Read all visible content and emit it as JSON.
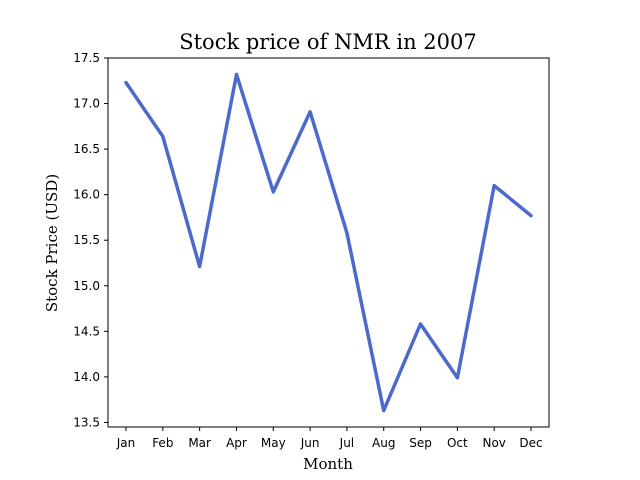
{
  "chart_data": {
    "type": "line",
    "title": "Stock price of NMR in 2007",
    "xlabel": "Month",
    "ylabel": "Stock Price (USD)",
    "categories": [
      "Jan",
      "Feb",
      "Mar",
      "Apr",
      "May",
      "Jun",
      "Jul",
      "Aug",
      "Sep",
      "Oct",
      "Nov",
      "Dec"
    ],
    "series": [
      {
        "values": [
          17.23,
          16.64,
          15.21,
          17.32,
          16.03,
          16.91,
          15.58,
          13.63,
          14.58,
          13.99,
          16.1,
          15.77
        ],
        "color": "#4c6acb"
      }
    ],
    "ylim": [
      13.45,
      17.5
    ],
    "yticks": [
      "13.5",
      "14.0",
      "14.5",
      "15.0",
      "15.5",
      "16.0",
      "16.5",
      "17.0",
      "17.5"
    ],
    "grid": false,
    "legend": "none"
  }
}
